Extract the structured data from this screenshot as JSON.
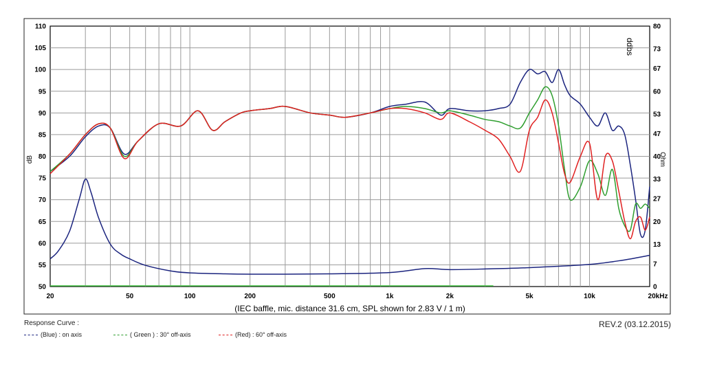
{
  "chart_data": {
    "type": "line",
    "xscale": "log",
    "xlim": [
      20,
      20000
    ],
    "ylim": [
      50,
      110
    ],
    "y2lim": [
      0,
      80
    ],
    "x_tick_labels": [
      "20",
      "50",
      "100",
      "200",
      "500",
      "1k",
      "2k",
      "5k",
      "10k",
      "20kHz"
    ],
    "x_tick_values": [
      20,
      50,
      100,
      200,
      500,
      1000,
      2000,
      5000,
      10000,
      20000
    ],
    "y_ticks": [
      50,
      55,
      60,
      65,
      70,
      75,
      80,
      85,
      90,
      95,
      100,
      105,
      110
    ],
    "y2_ticks": [
      0,
      7,
      13,
      20,
      27,
      33,
      40,
      47,
      53,
      60,
      67,
      73,
      80
    ],
    "ylabel": "dB",
    "y2label": "Ohm",
    "xlabel": "(IEC baffle, mic. distance 31.6 cm, SPL shown for 2.83 V / 1 m)",
    "grid": true,
    "series": [
      {
        "name": "(Blue)  : on axis",
        "color": "#1a237e",
        "x": [
          20,
          25,
          30,
          35,
          40,
          47,
          55,
          70,
          90,
          110,
          130,
          150,
          180,
          200,
          250,
          300,
          400,
          500,
          600,
          800,
          1000,
          1200,
          1500,
          1800,
          2000,
          2500,
          3000,
          3500,
          4000,
          4500,
          5000,
          5500,
          6000,
          6500,
          7000,
          7500,
          8000,
          9000,
          10000,
          11000,
          12000,
          13000,
          14000,
          15000,
          16000,
          17000,
          18000,
          19000,
          20000
        ],
        "y": [
          76.5,
          80,
          84.5,
          87,
          86.5,
          80.5,
          83.5,
          87.5,
          87,
          90.5,
          86,
          88,
          90,
          90.5,
          91,
          91.5,
          90,
          89.5,
          89,
          90,
          91.5,
          92,
          92.5,
          89.5,
          91,
          90.5,
          90.5,
          91,
          92,
          97,
          100,
          99,
          99.5,
          97,
          100,
          96.5,
          94,
          92,
          89,
          87,
          90,
          86,
          87,
          85,
          78,
          70,
          62,
          63,
          73
        ]
      },
      {
        "name": "( Green ) : 30° off-axis",
        "color": "#2e9e2e",
        "x": [
          20,
          25,
          30,
          35,
          40,
          47,
          55,
          70,
          90,
          110,
          130,
          150,
          180,
          200,
          250,
          300,
          400,
          500,
          600,
          800,
          1000,
          1200,
          1500,
          1800,
          2000,
          2500,
          3000,
          3500,
          4000,
          4500,
          5000,
          5500,
          6000,
          6500,
          7000,
          7500,
          8000,
          9000,
          10000,
          11000,
          12000,
          13000,
          14000,
          15000,
          16000,
          17000,
          18000,
          19000,
          20000
        ],
        "y": [
          76.5,
          80.5,
          85,
          87.5,
          86.5,
          80,
          83.5,
          87.5,
          87,
          90.5,
          86,
          88,
          90,
          90.5,
          91,
          91.5,
          90,
          89.5,
          89,
          90,
          91,
          91.5,
          91,
          90,
          90.5,
          89.5,
          88.5,
          88,
          87,
          86.5,
          90,
          93,
          96,
          94,
          87,
          77,
          70,
          73,
          79,
          76,
          71,
          77,
          68,
          64,
          63,
          69,
          68,
          69,
          68
        ]
      },
      {
        "name": "(Red) : 60° off-axis",
        "color": "#e02020",
        "x": [
          20,
          25,
          30,
          35,
          40,
          47,
          55,
          70,
          90,
          110,
          130,
          150,
          180,
          200,
          250,
          300,
          400,
          500,
          600,
          800,
          1000,
          1200,
          1500,
          1800,
          2000,
          2500,
          3000,
          3500,
          4000,
          4500,
          5000,
          5500,
          6000,
          6500,
          7000,
          7500,
          8000,
          9000,
          10000,
          11000,
          12000,
          13000,
          14000,
          15000,
          16000,
          17000,
          18000,
          19000,
          20000
        ],
        "y": [
          76,
          80.5,
          85,
          87.5,
          86.5,
          79.5,
          83.5,
          87.5,
          87,
          90.5,
          86,
          88,
          90,
          90.5,
          91,
          91.5,
          90,
          89.5,
          89,
          90,
          91,
          91,
          90,
          88.5,
          90,
          88,
          86,
          84,
          80,
          76.5,
          86,
          89,
          93,
          90,
          83,
          76,
          74,
          80,
          83,
          70,
          80,
          79,
          72,
          65,
          61,
          65,
          66,
          63,
          66
        ]
      },
      {
        "name": "Impedance",
        "color": "#1a237e",
        "axis": "y2",
        "x": [
          20,
          22,
          25,
          28,
          30,
          32,
          35,
          40,
          45,
          50,
          60,
          80,
          100,
          150,
          200,
          300,
          500,
          1000,
          1500,
          2000,
          3000,
          5000,
          10000,
          15000,
          20000
        ],
        "y": [
          8.5,
          11,
          17,
          27,
          33,
          29,
          21,
          13,
          10,
          8.5,
          6.5,
          4.8,
          4.2,
          3.9,
          3.8,
          3.8,
          3.9,
          4.3,
          5.5,
          5.2,
          5.4,
          5.8,
          6.8,
          8.2,
          9.6
        ]
      }
    ],
    "reference_line": {
      "color": "#3fbf3f",
      "y": 50,
      "x": [
        20,
        3300
      ]
    }
  },
  "legend": {
    "title": "Response Curve :",
    "items": [
      {
        "label": "(Blue)  : on axis",
        "color": "#1a237e"
      },
      {
        "label": "( Green ) : 30° off-axis",
        "color": "#2e9e2e"
      },
      {
        "label": "(Red) : 60° off-axis",
        "color": "#e02020"
      }
    ]
  },
  "revision": "REV.2 (03.12.2015)",
  "watermark": "ddbs"
}
